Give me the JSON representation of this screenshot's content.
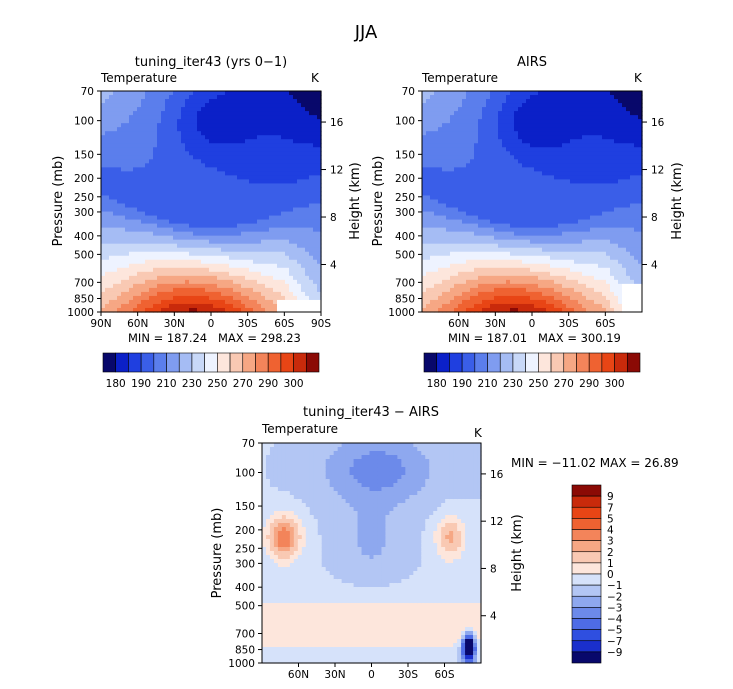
{
  "main_title": "JJA",
  "chart_data": [
    {
      "type": "contour",
      "title": "tuning_iter43 (yrs 0−1)",
      "variable_label": "Temperature",
      "units": "K",
      "ylabel_left": "Pressure (mb)",
      "ylabel_right": "Height (km)",
      "x_ticks": [
        "90N",
        "60N",
        "30N",
        "0",
        "30S",
        "60S",
        "90S"
      ],
      "y_ticks": [
        "70",
        "100",
        "150",
        "200",
        "250",
        "300",
        "400",
        "500",
        "700",
        "850",
        "1000"
      ],
      "height_ticks": [
        "16",
        "12",
        "8",
        "4"
      ],
      "min_label": "MIN = 187.24",
      "max_label": "MAX = 298.23",
      "min": 187.24,
      "max": 298.23,
      "colorbar_labels": [
        "180",
        "190",
        "210",
        "230",
        "250",
        "270",
        "290",
        "300"
      ]
    },
    {
      "type": "contour",
      "title": "AIRS",
      "variable_label": "Temperature",
      "units": "K",
      "ylabel_left": "Pressure (mb)",
      "ylabel_right": "Height (km)",
      "x_ticks": [
        "60N",
        "30N",
        "0",
        "30S",
        "60S"
      ],
      "y_ticks": [
        "70",
        "100",
        "150",
        "200",
        "250",
        "300",
        "400",
        "500",
        "700",
        "850",
        "1000"
      ],
      "height_ticks": [
        "16",
        "12",
        "8",
        "4"
      ],
      "min_label": "MIN = 187.01",
      "max_label": "MAX = 300.19",
      "min": 187.01,
      "max": 300.19,
      "colorbar_labels": [
        "180",
        "190",
        "210",
        "230",
        "250",
        "270",
        "290",
        "300"
      ]
    },
    {
      "type": "contour",
      "title": "tuning_iter43 − AIRS",
      "variable_label": "Temperature",
      "units": "K",
      "ylabel_left": "Pressure (mb)",
      "ylabel_right": "Height (km)",
      "x_ticks": [
        "60N",
        "30N",
        "0",
        "30S",
        "60S"
      ],
      "y_ticks": [
        "70",
        "100",
        "150",
        "200",
        "250",
        "300",
        "400",
        "500",
        "700",
        "850",
        "1000"
      ],
      "height_ticks": [
        "16",
        "12",
        "8",
        "4"
      ],
      "minmax_label": "MIN = −11.02  MAX =  26.89",
      "min": -11.02,
      "max": 26.89,
      "colorbar_labels": [
        "9",
        "7",
        "5",
        "4",
        "3",
        "2",
        "1",
        "0",
        "−1",
        "−2",
        "−3",
        "−4",
        "−5",
        "−7",
        "−9"
      ]
    }
  ],
  "colors": {
    "temp_scale": [
      "#08086b",
      "#0b20c8",
      "#1f3fe0",
      "#3a5ee8",
      "#5b7eec",
      "#7f9cf0",
      "#a5bcf4",
      "#c8d8f8",
      "#eef3ff",
      "#fde6dc",
      "#f9c9b3",
      "#f6a784",
      "#f3845a",
      "#ef6231",
      "#e84515",
      "#c92a0b",
      "#8b0a05"
    ],
    "diff_scale": [
      "#8b0a05",
      "#c92a0b",
      "#e84515",
      "#ef6231",
      "#f3845a",
      "#f6a784",
      "#f9c9b3",
      "#fde6dc",
      "#d6e2fa",
      "#b3c6f4",
      "#8ea8ef",
      "#6c8aea",
      "#4e6ce6",
      "#2f4fe0",
      "#1a2fcc",
      "#08086b"
    ]
  }
}
